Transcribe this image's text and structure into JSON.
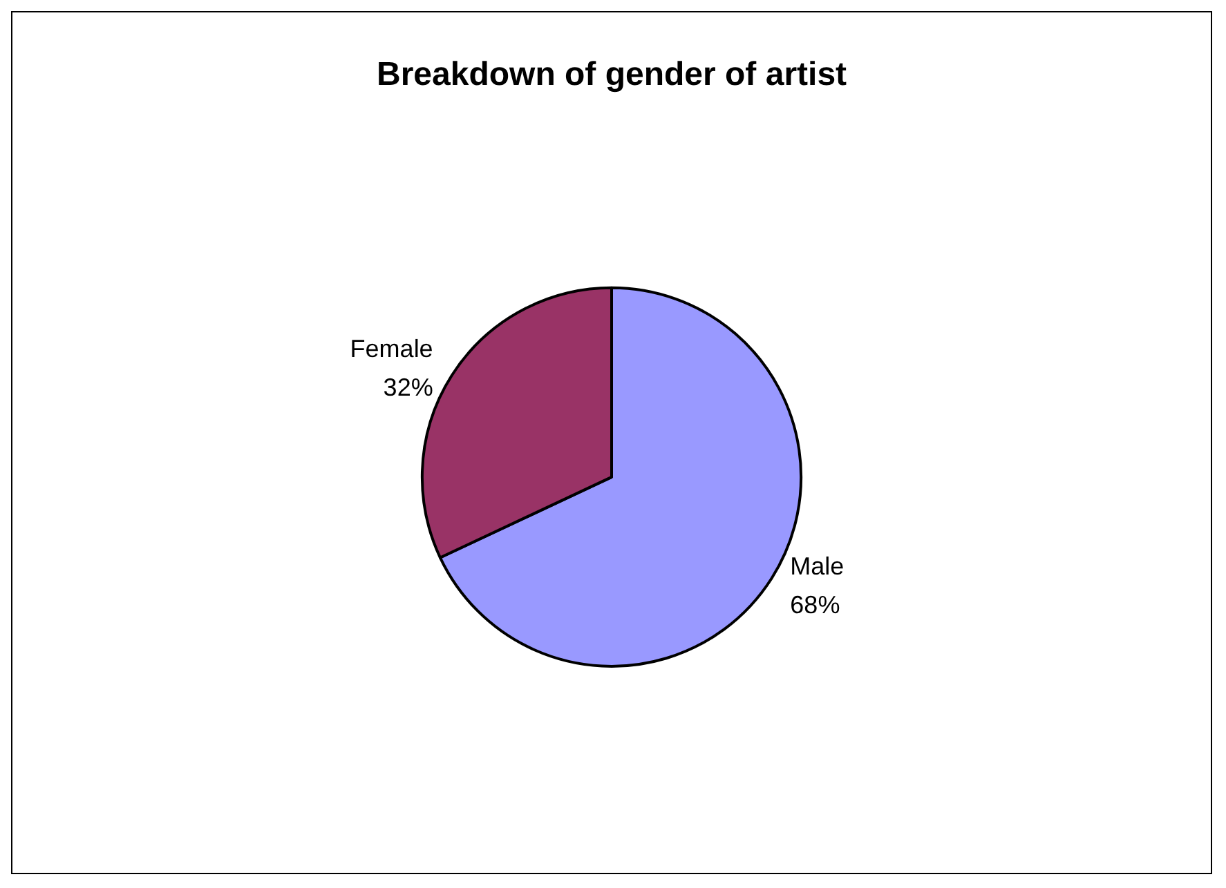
{
  "chart_data": {
    "type": "pie",
    "title": "Breakdown of gender of artist",
    "categories": [
      "Male",
      "Female"
    ],
    "values": [
      68,
      32
    ],
    "colors": [
      "#9999ff",
      "#993366"
    ],
    "value_labels": [
      "68%",
      "32%"
    ],
    "legend": false
  }
}
